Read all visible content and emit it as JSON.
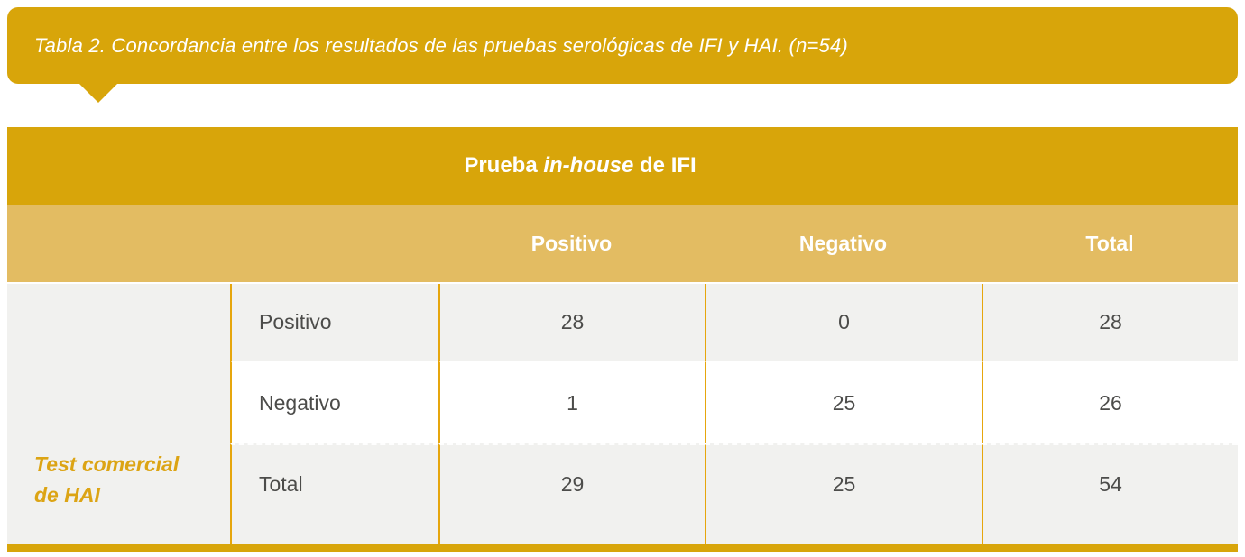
{
  "caption": {
    "text": "Tabla 2. Concordancia entre los resultados de las pruebas serológicas de IFI y HAI. (n=54)"
  },
  "table": {
    "top_header": {
      "part1": "Prueba ",
      "part2_italic": "in-house",
      "part3": " de IFI"
    },
    "column_headers": [
      "Positivo",
      "Negativo",
      "Total"
    ],
    "row_group_label_line1": "Test comercial",
    "row_group_label_line2": "de HAI",
    "rows": [
      {
        "label": "Positivo",
        "positivo": "28",
        "negativo": "0",
        "total": "28"
      },
      {
        "label": "Negativo",
        "positivo": "1",
        "negativo": "25",
        "total": "26"
      },
      {
        "label": "Total",
        "positivo": "29",
        "negativo": "25",
        "total": "54"
      }
    ]
  },
  "colors": {
    "gold_dark": "#D8A50A",
    "gold_light": "#E3BC62",
    "gold_border": "#E6A60D",
    "gray_row": "#F1F1EF",
    "white_row": "#FFFFFF",
    "body_text": "#4C4C4A",
    "gold_text": "#DCA414"
  },
  "chart_data": {
    "type": "table",
    "title": "Tabla 2. Concordancia entre los resultados de las pruebas serológicas de IFI y HAI. (n=54)",
    "column_group_header": "Prueba in-house de IFI",
    "row_group_header": "Test comercial de HAI",
    "columns": [
      "",
      "Positivo",
      "Negativo",
      "Total"
    ],
    "rows": [
      [
        "Positivo",
        28,
        0,
        28
      ],
      [
        "Negativo",
        1,
        25,
        26
      ],
      [
        "Total",
        29,
        25,
        54
      ]
    ],
    "n": 54
  }
}
